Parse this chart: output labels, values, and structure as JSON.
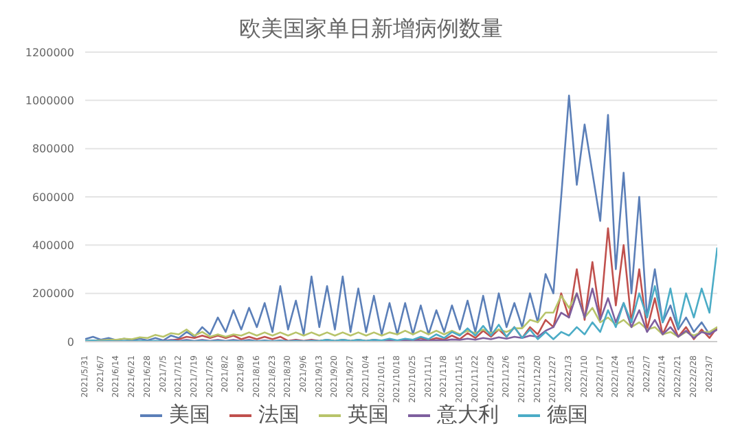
{
  "chart_data": {
    "type": "line",
    "title": "欧美国家单日新增病例数量",
    "categories": [
      "2021/5/31",
      null,
      "2021/6/7",
      null,
      "2021/6/14",
      null,
      "2021/6/21",
      null,
      "2021/6/28",
      null,
      "2021/7/5",
      null,
      "2021/7/12",
      null,
      "2021/7/19",
      null,
      "2021/7/26",
      null,
      "2021/8/2",
      null,
      "2021/8/9",
      null,
      "2021/8/16",
      null,
      "2021/8/23",
      null,
      "2021/8/30",
      null,
      "2021/9/6",
      null,
      "2021/9/13",
      null,
      "2021/9/20",
      null,
      "2021/9/27",
      null,
      "2021/10/4",
      null,
      "2021/10/11",
      null,
      "2021/10/18",
      null,
      "2021/10/25",
      null,
      "2021/11/1",
      null,
      "2021/11/8",
      null,
      "2021/11/15",
      null,
      "2021/11/22",
      null,
      "2021/11/29",
      null,
      "2021/12/6",
      null,
      "2021/12/13",
      null,
      "2021/12/20",
      null,
      "2021/12/27",
      null,
      "2022/1/3",
      null,
      "2022/1/10",
      null,
      "2022/1/17",
      null,
      "2022/1/24",
      null,
      "2022/1/31",
      null,
      "2022/2/7",
      null,
      "2022/2/14",
      null,
      "2022/2/21",
      null,
      "2022/2/28",
      null,
      "2022/3/7",
      null
    ],
    "series": [
      {
        "name": "美国",
        "color": "#5b7fb8",
        "values": [
          10000,
          20000,
          8000,
          15000,
          6000,
          12000,
          5000,
          12000,
          5000,
          15000,
          5000,
          25000,
          15000,
          40000,
          20000,
          60000,
          30000,
          100000,
          40000,
          130000,
          50000,
          140000,
          60000,
          160000,
          40000,
          230000,
          50000,
          170000,
          30000,
          270000,
          60000,
          230000,
          50000,
          270000,
          40000,
          220000,
          40000,
          190000,
          30000,
          160000,
          30000,
          160000,
          30000,
          150000,
          30000,
          130000,
          40000,
          150000,
          50000,
          170000,
          40000,
          190000,
          40000,
          200000,
          60000,
          160000,
          60000,
          200000,
          80000,
          280000,
          200000,
          600000,
          1020000,
          650000,
          900000,
          700000,
          500000,
          940000,
          300000,
          700000,
          200000,
          600000,
          100000,
          300000,
          80000,
          150000,
          50000,
          100000,
          40000,
          80000,
          30000,
          60000
        ]
      },
      {
        "name": "法国",
        "color": "#c0504d",
        "values": [
          null,
          null,
          null,
          null,
          null,
          null,
          null,
          null,
          null,
          null,
          3000,
          5000,
          10000,
          20000,
          15000,
          25000,
          15000,
          25000,
          15000,
          25000,
          10000,
          20000,
          10000,
          20000,
          10000,
          20000,
          3000,
          8000,
          3000,
          8000,
          3000,
          8000,
          3000,
          8000,
          3000,
          8000,
          3000,
          8000,
          3000,
          8000,
          3000,
          8000,
          5000,
          15000,
          5000,
          15000,
          8000,
          25000,
          10000,
          35000,
          15000,
          45000,
          20000,
          50000,
          20000,
          60000,
          15000,
          60000,
          30000,
          90000,
          60000,
          200000,
          100000,
          300000,
          90000,
          330000,
          100000,
          470000,
          150000,
          400000,
          80000,
          300000,
          50000,
          180000,
          30000,
          100000,
          20000,
          60000,
          10000,
          50000,
          15000,
          60000
        ]
      },
      {
        "name": "英国",
        "color": "#b8c46a",
        "values": [
          3000,
          5000,
          5000,
          8000,
          8000,
          12000,
          10000,
          18000,
          15000,
          28000,
          20000,
          35000,
          30000,
          50000,
          25000,
          40000,
          20000,
          30000,
          20000,
          30000,
          25000,
          38000,
          25000,
          38000,
          25000,
          38000,
          25000,
          38000,
          25000,
          38000,
          25000,
          38000,
          25000,
          38000,
          25000,
          38000,
          25000,
          38000,
          25000,
          38000,
          30000,
          45000,
          30000,
          45000,
          30000,
          45000,
          30000,
          45000,
          30000,
          45000,
          35000,
          50000,
          35000,
          50000,
          40000,
          55000,
          55000,
          90000,
          80000,
          120000,
          120000,
          190000,
          140000,
          200000,
          100000,
          140000,
          80000,
          100000,
          70000,
          90000,
          60000,
          80000,
          50000,
          60000,
          30000,
          40000,
          20000,
          40000,
          25000,
          40000,
          40000,
          60000
        ]
      },
      {
        "name": "意大利",
        "color": "#7e5f9e",
        "values": [
          2000,
          3000,
          2000,
          3000,
          2000,
          3000,
          2000,
          3000,
          2000,
          3000,
          3000,
          7000,
          3000,
          7000,
          3000,
          7000,
          3000,
          7000,
          3000,
          7000,
          3000,
          7000,
          2000,
          5000,
          2000,
          5000,
          2000,
          5000,
          2000,
          5000,
          2000,
          5000,
          2000,
          5000,
          2000,
          5000,
          2000,
          5000,
          2000,
          5000,
          2000,
          5000,
          3000,
          6000,
          3000,
          6000,
          5000,
          9000,
          7000,
          12000,
          8000,
          15000,
          10000,
          18000,
          12000,
          20000,
          15000,
          25000,
          20000,
          45000,
          60000,
          120000,
          100000,
          200000,
          100000,
          220000,
          90000,
          180000,
          80000,
          160000,
          60000,
          130000,
          40000,
          90000,
          30000,
          60000,
          20000,
          45000,
          15000,
          40000,
          30000,
          50000
        ]
      },
      {
        "name": "德国",
        "color": "#4bacc6",
        "values": [
          3000,
          5000,
          1000,
          3000,
          1000,
          3000,
          1000,
          3000,
          1000,
          3000,
          1000,
          3000,
          1000,
          3000,
          1000,
          3000,
          1000,
          3000,
          1000,
          3000,
          1000,
          3000,
          1000,
          3000,
          1000,
          3000,
          1000,
          3000,
          1000,
          3000,
          3000,
          8000,
          3000,
          8000,
          3000,
          8000,
          3000,
          8000,
          5000,
          12000,
          5000,
          12000,
          8000,
          20000,
          10000,
          30000,
          15000,
          40000,
          25000,
          55000,
          25000,
          65000,
          25000,
          70000,
          20000,
          60000,
          15000,
          50000,
          10000,
          40000,
          10000,
          40000,
          25000,
          60000,
          30000,
          80000,
          40000,
          130000,
          60000,
          160000,
          80000,
          200000,
          100000,
          230000,
          80000,
          220000,
          60000,
          200000,
          100000,
          220000,
          120000,
          390000
        ]
      }
    ],
    "ylim": [
      0,
      1200000
    ],
    "yticks": [
      0,
      200000,
      400000,
      600000,
      800000,
      1000000,
      1200000
    ],
    "grid": "y",
    "legend": "bottom",
    "marker": "none",
    "line_style": "solid"
  }
}
